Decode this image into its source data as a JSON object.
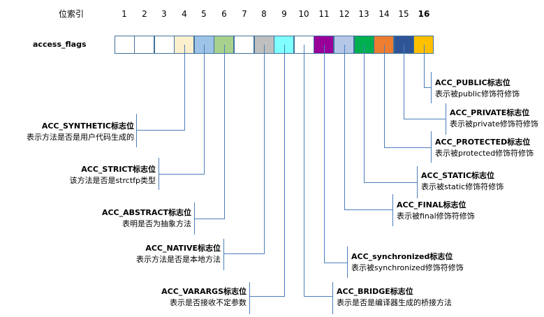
{
  "header": {
    "index_label": "位索引",
    "field_label": "access_flags"
  },
  "bit_indices": [
    "1",
    "2",
    "3",
    "4",
    "5",
    "6",
    "7",
    "8",
    "9",
    "10",
    "11",
    "12",
    "13",
    "14",
    "15",
    "16"
  ],
  "cells": [
    {
      "index": "1",
      "color": "#ffffff"
    },
    {
      "index": "2",
      "color": "#ffffff"
    },
    {
      "index": "3",
      "color": "#ffffff"
    },
    {
      "index": "4",
      "color": "#fcf0cc"
    },
    {
      "index": "5",
      "color": "#9dc3e6"
    },
    {
      "index": "6",
      "color": "#a9d18e"
    },
    {
      "index": "7",
      "color": "#ffffff"
    },
    {
      "index": "8",
      "color": "#bfbfbf"
    },
    {
      "index": "9",
      "color": "#7fffff"
    },
    {
      "index": "10",
      "color": "#ffffff"
    },
    {
      "index": "11",
      "color": "#990099"
    },
    {
      "index": "12",
      "color": "#b4c7e7"
    },
    {
      "index": "13",
      "color": "#00b050"
    },
    {
      "index": "14",
      "color": "#ed7d31"
    },
    {
      "index": "15",
      "color": "#2f5597"
    },
    {
      "index": "16",
      "color": "#ffc000"
    }
  ],
  "flags": [
    {
      "name": "ACC_SYNTHETIC标志位",
      "desc": "表示方法是否是用户代码生成的",
      "bit": "4"
    },
    {
      "name": "ACC_STRICT标志位",
      "desc": "该方法是否是strctfp类型",
      "bit": "5"
    },
    {
      "name": "ACC_ABSTRACT标志位",
      "desc": "表明是否为抽象方法",
      "bit": "6"
    },
    {
      "name": "ACC_NATIVE标志位",
      "desc": "表示方法是否是本地方法",
      "bit": "8"
    },
    {
      "name": "ACC_VARARGS标志位",
      "desc": "表示是否接收不定参数",
      "bit": "9"
    },
    {
      "name": "ACC_BRIDGE标志位",
      "desc": "表示是否是编译器生成的桥接方法",
      "bit": "10"
    },
    {
      "name": "ACC_synchronized标志位",
      "desc": "表示被synchronized修饰符修饰",
      "bit": "11"
    },
    {
      "name": "ACC_FINAL标志位",
      "desc": "表示被final修饰符修饰",
      "bit": "12"
    },
    {
      "name": "ACC_STATIC标志位",
      "desc": "表示被static修饰符修饰",
      "bit": "13"
    },
    {
      "name": "ACC_PROTECTED标志位",
      "desc": "表示被protected修饰符修饰",
      "bit": "14"
    },
    {
      "name": "ACC_PRIVATE标志位",
      "desc": "表示被private修饰符修饰",
      "bit": "15"
    },
    {
      "name": "ACC_PUBLIC标志位",
      "desc": "表示被public修饰符修饰",
      "bit": "16"
    }
  ],
  "line_color": "#4a7ebb"
}
